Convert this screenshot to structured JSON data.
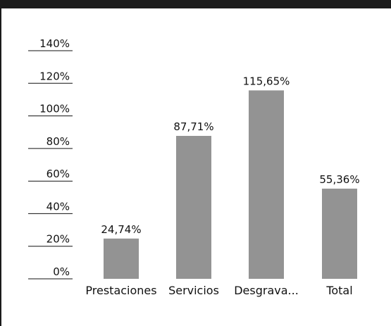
{
  "chart_data": {
    "type": "bar",
    "categories": [
      "Prestaciones",
      "Servicios",
      "Desgrava...",
      "Total"
    ],
    "values": [
      24.74,
      87.71,
      115.65,
      55.36
    ],
    "value_labels": [
      "24,74%",
      "87,71%",
      "115,65%",
      "55,36%"
    ],
    "y_ticks": [
      "0%",
      "20%",
      "40%",
      "60%",
      "80%",
      "100%",
      "120%",
      "140%"
    ],
    "ylim": [
      0,
      140
    ],
    "title": "",
    "xlabel": "",
    "ylabel": "",
    "grid": false,
    "legend": "none",
    "bar_color": "#939393"
  }
}
